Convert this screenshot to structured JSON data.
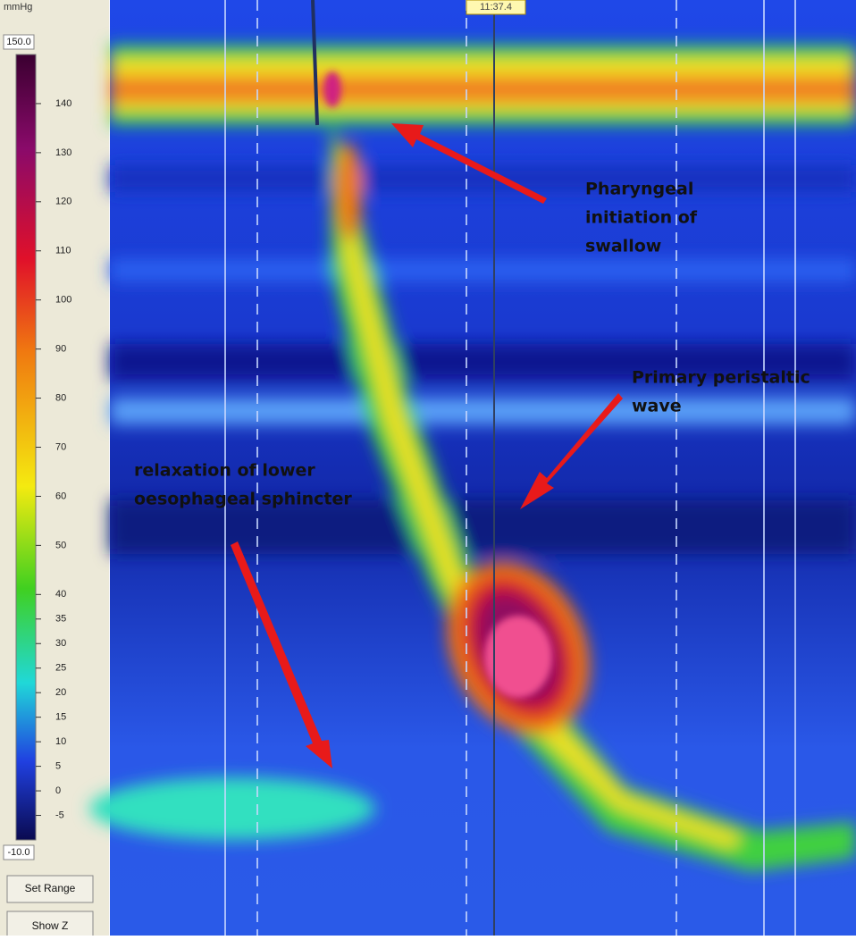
{
  "header": {
    "unit": "mmHg",
    "time": "11:37.4"
  },
  "color_scale": {
    "max": {
      "value": 150,
      "label": "150.0"
    },
    "min": {
      "value": -10,
      "label": "-10.0"
    },
    "ticks": [
      140,
      130,
      120,
      110,
      100,
      90,
      80,
      70,
      60,
      50,
      40,
      35,
      30,
      25,
      20,
      15,
      10,
      5,
      0,
      -5
    ]
  },
  "buttons": [
    "Set Range",
    "Show Z"
  ],
  "annotations": [
    {
      "lines": [
        "Pharyngeal",
        "initiation of",
        "swallow"
      ]
    },
    {
      "lines": [
        "Primary peristaltic",
        "wave"
      ]
    },
    {
      "lines": [
        "relaxation of lower",
        "oesophageal sphincter"
      ]
    }
  ]
}
